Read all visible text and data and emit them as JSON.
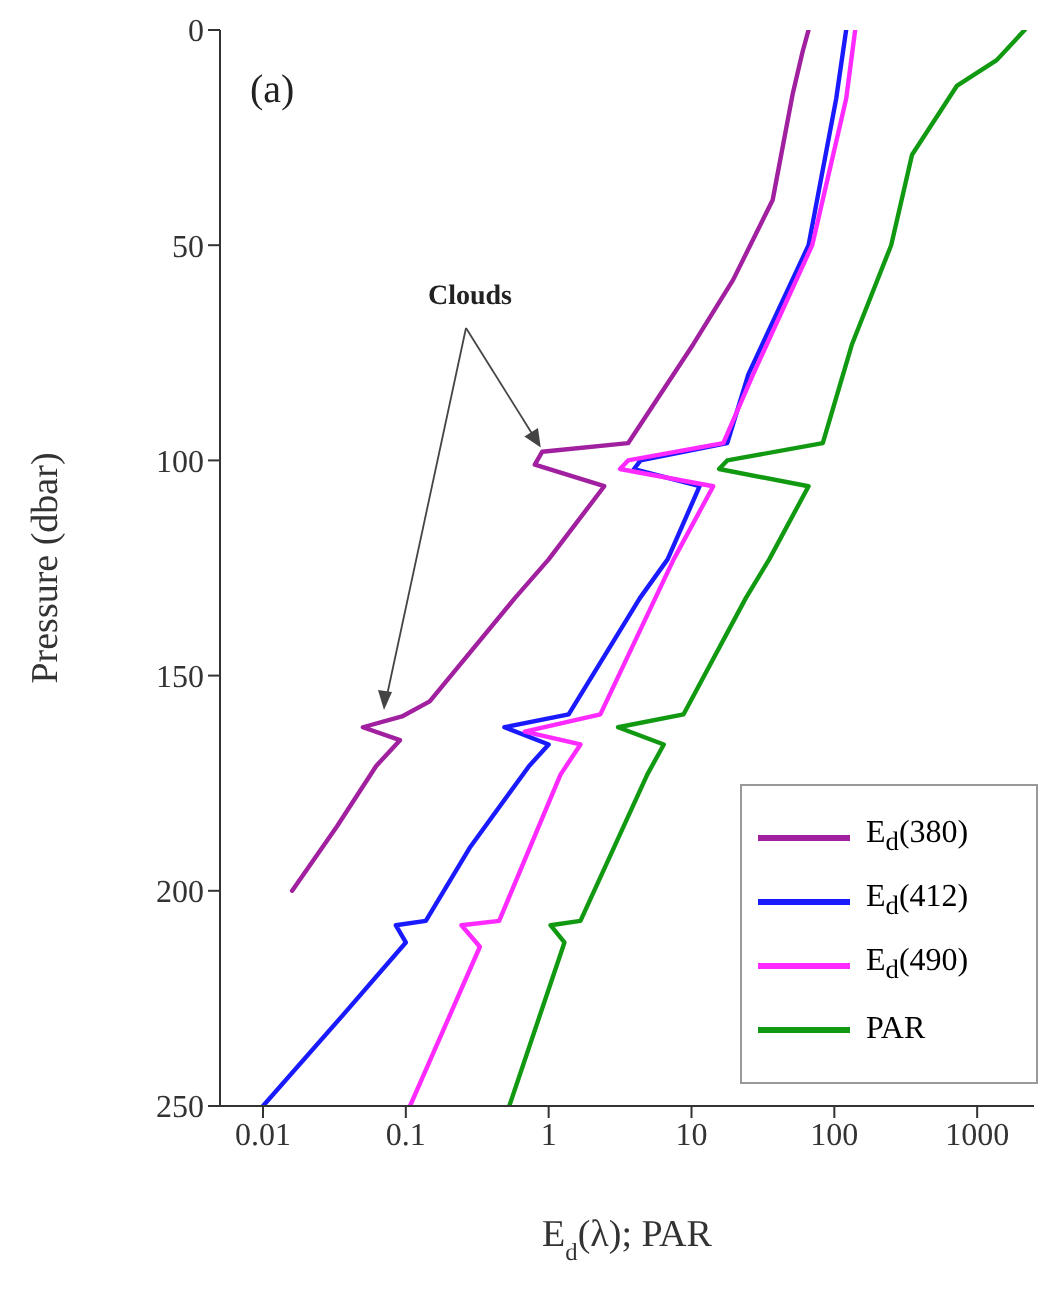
{
  "chart_data": {
    "type": "line",
    "xlabel": "E$_{d}$(λ); PAR",
    "ylabel": "Pressure (dbar)",
    "log": "x",
    "xlim": [
      0.005,
      2500
    ],
    "xticks": [
      0.01,
      0.1,
      1,
      10,
      100,
      1000
    ],
    "ylim": [
      250,
      0
    ],
    "yticks": [
      0,
      50,
      100,
      150,
      200,
      250
    ],
    "grid": false,
    "legend": "bottom right",
    "marker": "none",
    "line_style": "solid",
    "annotations": [
      "(a)",
      {
        "text": "Clouds",
        "x": 0.88,
        "y": 97
      }
    ],
    "series": [
      {
        "name": "E$_{d}$(380)",
        "color": "#a020a0",
        "x": [
          66,
          60,
          51,
          37,
          19.6,
          10.3,
          3.6,
          0.9,
          0.8,
          2.45,
          1.0,
          0.58,
          0.147,
          0.094,
          0.05,
          0.091,
          0.062,
          0.033,
          0.016
        ],
        "values": [
          0,
          5,
          15,
          39.5,
          58,
          73,
          96,
          98,
          101,
          106,
          123,
          132,
          156,
          159.5,
          162,
          165,
          171,
          185,
          200
        ]
      },
      {
        "name": "E$_{d}$(412)",
        "color": "#1a1aff",
        "x": [
          121,
          103,
          66,
          25,
          17.8,
          4.4,
          3.96,
          11.4,
          6.8,
          4.35,
          1.38,
          0.49,
          1.0,
          0.73,
          0.28,
          0.138,
          0.085,
          0.1,
          0.036,
          0.01
        ],
        "values": [
          0,
          16,
          50,
          80,
          96,
          100,
          102,
          106,
          123,
          132,
          159,
          162,
          166,
          171,
          190,
          207,
          208,
          212,
          229,
          250
        ]
      },
      {
        "name": "E$_{d}$(490)",
        "color": "#ff2aff",
        "x": [
          140,
          121,
          70,
          27,
          16.7,
          3.6,
          3.16,
          14.2,
          7.5,
          2.3,
          0.68,
          1.67,
          1.21,
          0.45,
          0.245,
          0.33,
          0.107
        ],
        "values": [
          0,
          16,
          50,
          80,
          96,
          100,
          102,
          106,
          123,
          159,
          163,
          166,
          173,
          207,
          208,
          213,
          250
        ]
      },
      {
        "name": "PAR",
        "color": "#119911",
        "x": [
          2150,
          1370,
          720,
          350,
          250,
          133,
          83,
          17.8,
          15.6,
          66,
          35,
          24,
          8.8,
          3.06,
          6.4,
          4.9,
          1.67,
          1.03,
          1.29,
          0.53
        ],
        "values": [
          0,
          7,
          13,
          29,
          50,
          73,
          96,
          100,
          102,
          106,
          123,
          132,
          159,
          162,
          166,
          173,
          207,
          208,
          212,
          250
        ]
      }
    ]
  }
}
